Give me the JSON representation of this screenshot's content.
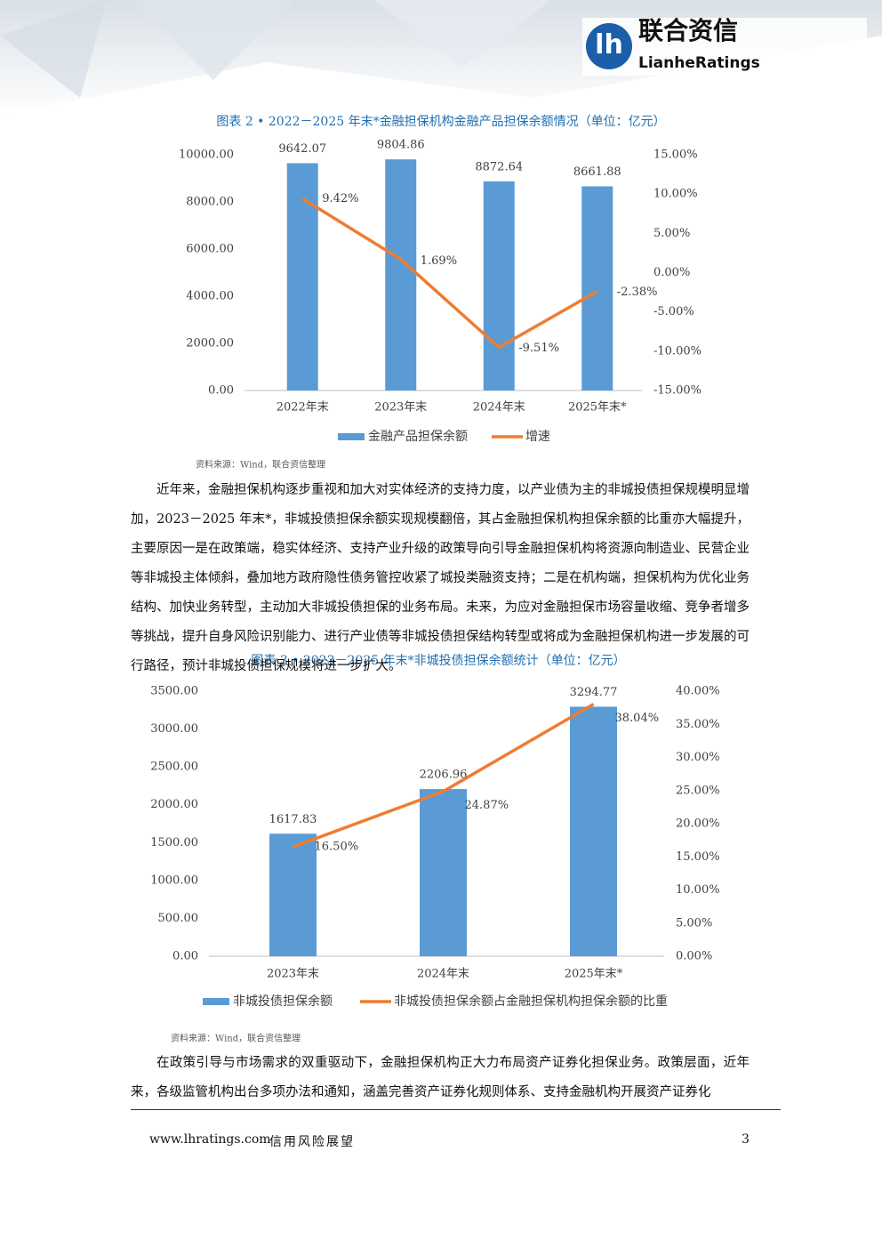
{
  "header": {
    "brand": "联合资信",
    "brand_en": "LianheRatings"
  },
  "chart_data": [
    {
      "type": "bar_line",
      "title": "图表 2 • 2022－2025 年末*金融担保机构金融产品担保余额情况（单位：亿元）",
      "categories": [
        "2022年末",
        "2023年末",
        "2024年末",
        "2025年末*"
      ],
      "series": [
        {
          "name": "金融产品担保余额",
          "type": "bar",
          "color": "#5b9bd5",
          "values": [
            9642.07,
            9804.86,
            8872.64,
            8661.88
          ]
        },
        {
          "name": "增速",
          "type": "line",
          "axis": "y2",
          "color": "#ed7d31",
          "values": [
            9.42,
            1.69,
            -9.51,
            -2.38
          ],
          "value_labels": [
            "9.42%",
            "1.69%",
            "-9.51%",
            "-2.38%"
          ]
        }
      ],
      "ylim": [
        0,
        10000
      ],
      "yticks": [
        {
          "value": 0,
          "label": "0.00"
        },
        {
          "value": 2000,
          "label": "2000.00"
        },
        {
          "value": 4000,
          "label": "4000.00"
        },
        {
          "value": 6000,
          "label": "6000.00"
        },
        {
          "value": 8000,
          "label": "8000.00"
        },
        {
          "value": 10000,
          "label": "10000.00"
        }
      ],
      "y2lim": [
        -15,
        15
      ],
      "y2ticks": [
        {
          "value": -15,
          "label": "-15.00%"
        },
        {
          "value": -10,
          "label": "-10.00%"
        },
        {
          "value": -5,
          "label": "-5.00%"
        },
        {
          "value": 0,
          "label": "0.00%"
        },
        {
          "value": 5,
          "label": "5.00%"
        },
        {
          "value": 10,
          "label": "10.00%"
        },
        {
          "value": 15,
          "label": "15.00%"
        }
      ],
      "legend": "bottom",
      "grid": false,
      "source": "资料来源：Wind，联合资信整理"
    },
    {
      "type": "bar_line",
      "title": "图表 3 • 2023－2025 年末*非城投债担保余额统计（单位：亿元）",
      "categories": [
        "2023年末",
        "2024年末",
        "2025年末*"
      ],
      "series": [
        {
          "name": "非城投债担保余额",
          "type": "bar",
          "color": "#5b9bd5",
          "values": [
            1617.83,
            2206.96,
            3294.77
          ]
        },
        {
          "name": "非城投债担保余额占金融担保机构担保余额的比重",
          "type": "line",
          "axis": "y2",
          "color": "#ed7d31",
          "values": [
            16.5,
            24.87,
            38.04
          ],
          "value_labels": [
            "16.50%",
            "24.87%",
            "38.04%"
          ]
        }
      ],
      "ylim": [
        0,
        3500
      ],
      "yticks": [
        {
          "value": 0,
          "label": "0.00"
        },
        {
          "value": 500,
          "label": "500.00"
        },
        {
          "value": 1000,
          "label": "1000.00"
        },
        {
          "value": 1500,
          "label": "1500.00"
        },
        {
          "value": 2000,
          "label": "2000.00"
        },
        {
          "value": 2500,
          "label": "2500.00"
        },
        {
          "value": 3000,
          "label": "3000.00"
        },
        {
          "value": 3500,
          "label": "3500.00"
        }
      ],
      "y2lim": [
        0,
        40
      ],
      "y2ticks": [
        {
          "value": 0,
          "label": "0.00%"
        },
        {
          "value": 5,
          "label": "5.00%"
        },
        {
          "value": 10,
          "label": "10.00%"
        },
        {
          "value": 15,
          "label": "15.00%"
        },
        {
          "value": 20,
          "label": "20.00%"
        },
        {
          "value": 25,
          "label": "25.00%"
        },
        {
          "value": 30,
          "label": "30.00%"
        },
        {
          "value": 35,
          "label": "35.00%"
        },
        {
          "value": 40,
          "label": "40.00%"
        }
      ],
      "legend": "bottom",
      "grid": false,
      "source": "资料来源：Wind，联合资信整理"
    }
  ],
  "paragraphs": [
    "近年来，金融担保机构逐步重视和加大对实体经济的支持力度，以产业债为主的非城投债担保规模明显增加，2023－2025 年末*，非城投债担保余额实现规模翻倍，其占金融担保机构担保余额的比重亦大幅提升，主要原因一是在政策端，稳实体经济、支持产业升级的政策导向引导金融担保机构将资源向制造业、民营企业等非城投主体倾斜，叠加地方政府隐性债务管控收紧了城投类融资支持；二是在机构端，担保机构为优化业务结构、加快业务转型，主动加大非城投债担保的业务布局。未来，为应对金融担保市场容量收缩、竞争者增多等挑战，提升自身风险识别能力、进行产业债等非城投债担保结构转型或将成为金融担保机构进一步发展的可行路径，预计非城投债担保规模将进一步扩大。",
    "在政策引导与市场需求的双重驱动下，金融担保机构正大力布局资产证券化担保业务。政策层面，近年来，各级监管机构出台多项办法和通知，涵盖完善资产证券化规则体系、支持金融机构开展资产证券化"
  ],
  "footer": {
    "website": "www.lhratings.com",
    "publication": "信用风险展望",
    "page": "3"
  }
}
